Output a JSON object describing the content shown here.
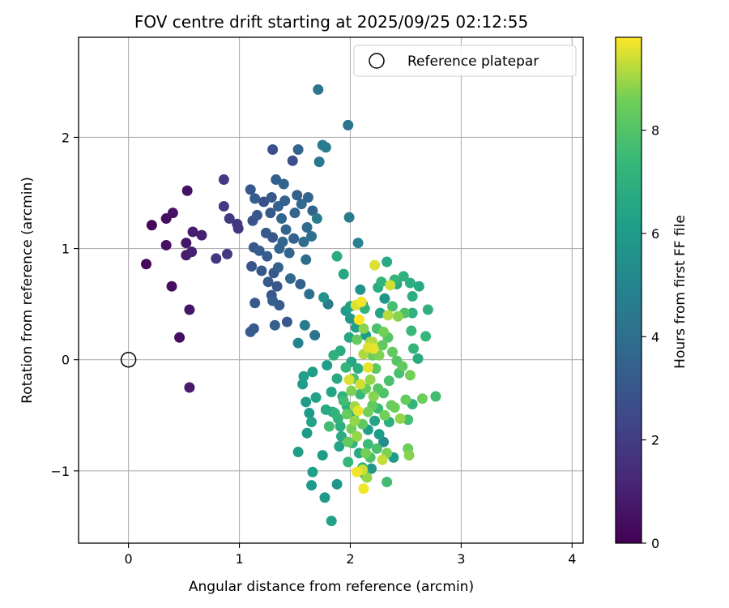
{
  "chart_data": {
    "type": "scatter",
    "title": "FOV centre drift starting at 2025/09/25 02:12:55",
    "xlabel": "Angular distance from reference (arcmin)",
    "ylabel": "Rotation from reference (arcmin)",
    "xlim": [
      -0.45,
      4.1
    ],
    "ylim": [
      -1.65,
      2.9
    ],
    "xticks": [
      0,
      1,
      2,
      3,
      4
    ],
    "xtick_labels": [
      "0",
      "1",
      "2",
      "3",
      "4"
    ],
    "yticks": [
      -1,
      0,
      1,
      2
    ],
    "ytick_labels": [
      "−1",
      "0",
      "1",
      "2"
    ],
    "grid": true,
    "legend": {
      "placement": "top-right",
      "label": "Reference platepar"
    },
    "reference_point": {
      "x": 0,
      "y": 0
    },
    "colorbar": {
      "label": "Hours from first FF file",
      "colormap": "viridis",
      "range": [
        0,
        9.8
      ],
      "ticks": [
        0,
        2,
        4,
        6,
        8
      ],
      "tick_labels": [
        "0",
        "2",
        "4",
        "6",
        "8"
      ]
    },
    "points": [
      {
        "x": 0.16,
        "y": 0.86,
        "c": 0.2
      },
      {
        "x": 0.21,
        "y": 1.21,
        "c": 0.2
      },
      {
        "x": 0.34,
        "y": 1.27,
        "c": 0.4
      },
      {
        "x": 0.34,
        "y": 1.03,
        "c": 0.5
      },
      {
        "x": 0.4,
        "y": 1.32,
        "c": 0.5
      },
      {
        "x": 0.39,
        "y": 0.66,
        "c": 0.4
      },
      {
        "x": 0.46,
        "y": 0.2,
        "c": 0.4
      },
      {
        "x": 0.52,
        "y": 1.05,
        "c": 0.7
      },
      {
        "x": 0.53,
        "y": 1.52,
        "c": 0.5
      },
      {
        "x": 0.52,
        "y": 0.94,
        "c": 0.8
      },
      {
        "x": 0.55,
        "y": 0.45,
        "c": 0.7
      },
      {
        "x": 0.55,
        "y": -0.25,
        "c": 0.8
      },
      {
        "x": 0.58,
        "y": 1.15,
        "c": 0.9
      },
      {
        "x": 0.57,
        "y": 0.97,
        "c": 1.0
      },
      {
        "x": 0.66,
        "y": 1.12,
        "c": 1.0
      },
      {
        "x": 0.79,
        "y": 0.91,
        "c": 1.7
      },
      {
        "x": 0.86,
        "y": 1.62,
        "c": 1.9
      },
      {
        "x": 0.86,
        "y": 1.38,
        "c": 1.9
      },
      {
        "x": 0.89,
        "y": 0.95,
        "c": 1.9
      },
      {
        "x": 0.91,
        "y": 1.27,
        "c": 1.9
      },
      {
        "x": 0.98,
        "y": 1.22,
        "c": 1.8
      },
      {
        "x": 0.99,
        "y": 1.18,
        "c": 1.8
      },
      {
        "x": 1.1,
        "y": 1.53,
        "c": 3.0
      },
      {
        "x": 1.12,
        "y": 1.25,
        "c": 2.8
      },
      {
        "x": 1.14,
        "y": 1.45,
        "c": 3.2
      },
      {
        "x": 1.16,
        "y": 1.3,
        "c": 3.0
      },
      {
        "x": 1.13,
        "y": 1.01,
        "c": 3.0
      },
      {
        "x": 1.11,
        "y": 0.84,
        "c": 2.9
      },
      {
        "x": 1.14,
        "y": 0.51,
        "c": 3.1
      },
      {
        "x": 1.13,
        "y": 0.28,
        "c": 3.0
      },
      {
        "x": 1.1,
        "y": 0.25,
        "c": 3.2
      },
      {
        "x": 1.18,
        "y": 0.98,
        "c": 3.2
      },
      {
        "x": 1.2,
        "y": 0.8,
        "c": 3.0
      },
      {
        "x": 1.22,
        "y": 1.42,
        "c": 2.7
      },
      {
        "x": 1.24,
        "y": 1.14,
        "c": 3.1
      },
      {
        "x": 1.25,
        "y": 0.93,
        "c": 3.2
      },
      {
        "x": 1.26,
        "y": 0.7,
        "c": 3.1
      },
      {
        "x": 1.28,
        "y": 1.32,
        "c": 3.0
      },
      {
        "x": 1.29,
        "y": 1.46,
        "c": 3.1
      },
      {
        "x": 1.3,
        "y": 1.89,
        "c": 2.7
      },
      {
        "x": 1.3,
        "y": 1.1,
        "c": 3.0
      },
      {
        "x": 1.31,
        "y": 0.78,
        "c": 3.1
      },
      {
        "x": 1.29,
        "y": 0.58,
        "c": 3.0
      },
      {
        "x": 1.3,
        "y": 0.53,
        "c": 3.3
      },
      {
        "x": 1.32,
        "y": 0.31,
        "c": 3.3
      },
      {
        "x": 1.33,
        "y": 1.62,
        "c": 3.3
      },
      {
        "x": 1.35,
        "y": 1.38,
        "c": 3.4
      },
      {
        "x": 1.36,
        "y": 1.0,
        "c": 3.5
      },
      {
        "x": 1.35,
        "y": 0.83,
        "c": 3.4
      },
      {
        "x": 1.34,
        "y": 0.66,
        "c": 3.0
      },
      {
        "x": 1.36,
        "y": 0.49,
        "c": 3.2
      },
      {
        "x": 1.38,
        "y": 1.27,
        "c": 3.6
      },
      {
        "x": 1.39,
        "y": 1.06,
        "c": 3.6
      },
      {
        "x": 1.4,
        "y": 1.58,
        "c": 3.5
      },
      {
        "x": 1.41,
        "y": 1.43,
        "c": 3.4
      },
      {
        "x": 1.42,
        "y": 1.17,
        "c": 3.5
      },
      {
        "x": 1.43,
        "y": 0.34,
        "c": 3.1
      },
      {
        "x": 1.45,
        "y": 0.96,
        "c": 3.6
      },
      {
        "x": 1.46,
        "y": 0.73,
        "c": 3.7
      },
      {
        "x": 1.48,
        "y": 1.79,
        "c": 2.7
      },
      {
        "x": 1.49,
        "y": 1.09,
        "c": 3.4
      },
      {
        "x": 1.5,
        "y": 1.32,
        "c": 3.5
      },
      {
        "x": 1.52,
        "y": 1.48,
        "c": 3.4
      },
      {
        "x": 1.53,
        "y": 1.89,
        "c": 3.5
      },
      {
        "x": 1.53,
        "y": 0.15,
        "c": 4.9
      },
      {
        "x": 1.55,
        "y": 0.68,
        "c": 3.3
      },
      {
        "x": 1.56,
        "y": 1.4,
        "c": 3.7
      },
      {
        "x": 1.58,
        "y": 1.06,
        "c": 3.9
      },
      {
        "x": 1.59,
        "y": 0.31,
        "c": 4.5
      },
      {
        "x": 1.6,
        "y": 0.9,
        "c": 3.9
      },
      {
        "x": 1.61,
        "y": 1.19,
        "c": 3.8
      },
      {
        "x": 1.62,
        "y": 1.46,
        "c": 3.5
      },
      {
        "x": 1.63,
        "y": 0.59,
        "c": 4.0
      },
      {
        "x": 1.65,
        "y": 1.11,
        "c": 4.0
      },
      {
        "x": 1.66,
        "y": 1.34,
        "c": 3.5
      },
      {
        "x": 1.68,
        "y": 0.22,
        "c": 4.2
      },
      {
        "x": 1.7,
        "y": 1.27,
        "c": 4.6
      },
      {
        "x": 1.71,
        "y": 2.43,
        "c": 4.3
      },
      {
        "x": 1.72,
        "y": 1.78,
        "c": 4.4
      },
      {
        "x": 1.75,
        "y": 1.93,
        "c": 4.6
      },
      {
        "x": 1.76,
        "y": 0.56,
        "c": 5.6
      },
      {
        "x": 1.78,
        "y": 1.91,
        "c": 4.5
      },
      {
        "x": 1.8,
        "y": 0.5,
        "c": 4.6
      },
      {
        "x": 1.98,
        "y": 2.11,
        "c": 4.2
      },
      {
        "x": 1.99,
        "y": 1.28,
        "c": 4.6
      },
      {
        "x": 2.07,
        "y": 1.05,
        "c": 4.9
      },
      {
        "x": 1.88,
        "y": 0.93,
        "c": 6.8
      },
      {
        "x": 1.94,
        "y": 0.77,
        "c": 6.5
      },
      {
        "x": 2.09,
        "y": 0.63,
        "c": 5.6
      },
      {
        "x": 2.11,
        "y": 0.5,
        "c": 4.8
      },
      {
        "x": 1.96,
        "y": 0.44,
        "c": 6.0
      },
      {
        "x": 2.0,
        "y": 0.37,
        "c": 5.9
      },
      {
        "x": 2.05,
        "y": 0.29,
        "c": 6.2
      },
      {
        "x": 1.99,
        "y": 0.2,
        "c": 6.5
      },
      {
        "x": 2.14,
        "y": 0.22,
        "c": 6.0
      },
      {
        "x": 1.91,
        "y": 0.08,
        "c": 6.8
      },
      {
        "x": 2.01,
        "y": -0.02,
        "c": 6.5
      },
      {
        "x": 2.07,
        "y": -0.08,
        "c": 6.9
      },
      {
        "x": 1.85,
        "y": 0.04,
        "c": 7.0
      },
      {
        "x": 1.88,
        "y": -0.17,
        "c": 6.6
      },
      {
        "x": 1.93,
        "y": -0.33,
        "c": 7.1
      },
      {
        "x": 1.97,
        "y": -0.42,
        "c": 6.9
      },
      {
        "x": 1.89,
        "y": -0.53,
        "c": 7.2
      },
      {
        "x": 2.04,
        "y": -0.48,
        "c": 7.0
      },
      {
        "x": 1.92,
        "y": -0.69,
        "c": 6.8
      },
      {
        "x": 2.02,
        "y": -0.75,
        "c": 7.1
      },
      {
        "x": 2.08,
        "y": -0.84,
        "c": 6.7
      },
      {
        "x": 1.98,
        "y": -0.92,
        "c": 7.3
      },
      {
        "x": 2.11,
        "y": -0.97,
        "c": 7.2
      },
      {
        "x": 1.84,
        "y": -0.47,
        "c": 6.8
      },
      {
        "x": 1.78,
        "y": -0.45,
        "c": 6.6
      },
      {
        "x": 1.75,
        "y": -0.86,
        "c": 6.1
      },
      {
        "x": 1.69,
        "y": -0.34,
        "c": 6.3
      },
      {
        "x": 1.66,
        "y": -0.11,
        "c": 6.1
      },
      {
        "x": 1.63,
        "y": -0.48,
        "c": 6.0
      },
      {
        "x": 1.65,
        "y": -0.56,
        "c": 6.3
      },
      {
        "x": 1.6,
        "y": -0.38,
        "c": 6.0
      },
      {
        "x": 1.61,
        "y": -0.66,
        "c": 6.0
      },
      {
        "x": 1.57,
        "y": -0.22,
        "c": 6.0
      },
      {
        "x": 1.58,
        "y": -0.15,
        "c": 6.2
      },
      {
        "x": 1.53,
        "y": -0.83,
        "c": 6.1
      },
      {
        "x": 1.66,
        "y": -1.01,
        "c": 6.2
      },
      {
        "x": 1.65,
        "y": -1.13,
        "c": 6.0
      },
      {
        "x": 1.77,
        "y": -1.24,
        "c": 5.9
      },
      {
        "x": 1.83,
        "y": -1.45,
        "c": 6.3
      },
      {
        "x": 1.88,
        "y": -1.12,
        "c": 5.8
      },
      {
        "x": 1.9,
        "y": -0.78,
        "c": 6.4
      },
      {
        "x": 2.13,
        "y": -1.03,
        "c": 7.0
      },
      {
        "x": 2.16,
        "y": -0.63,
        "c": 6.2
      },
      {
        "x": 2.19,
        "y": -0.98,
        "c": 5.8
      },
      {
        "x": 2.22,
        "y": -0.55,
        "c": 6.4
      },
      {
        "x": 2.26,
        "y": -0.67,
        "c": 6.1
      },
      {
        "x": 2.3,
        "y": -0.74,
        "c": 5.4
      },
      {
        "x": 2.35,
        "y": -0.56,
        "c": 6.9
      },
      {
        "x": 2.39,
        "y": -0.88,
        "c": 6.1
      },
      {
        "x": 2.33,
        "y": -1.1,
        "c": 7.6
      },
      {
        "x": 2.25,
        "y": -0.44,
        "c": 7.5
      },
      {
        "x": 2.18,
        "y": -0.18,
        "c": 8.9
      },
      {
        "x": 2.21,
        "y": -0.33,
        "c": 8.8
      },
      {
        "x": 2.16,
        "y": -0.07,
        "c": 9.6
      },
      {
        "x": 2.12,
        "y": 0.05,
        "c": 9.1
      },
      {
        "x": 2.09,
        "y": -0.22,
        "c": 9.4
      },
      {
        "x": 2.04,
        "y": -0.42,
        "c": 9.0
      },
      {
        "x": 2.01,
        "y": -0.28,
        "c": 8.7
      },
      {
        "x": 1.99,
        "y": -0.18,
        "c": 9.5
      },
      {
        "x": 1.97,
        "y": -0.49,
        "c": 8.4
      },
      {
        "x": 2.06,
        "y": -0.69,
        "c": 8.9
      },
      {
        "x": 2.14,
        "y": -0.84,
        "c": 8.6
      },
      {
        "x": 2.12,
        "y": -1.16,
        "c": 9.7
      },
      {
        "x": 2.11,
        "y": -0.99,
        "c": 9.4
      },
      {
        "x": 2.29,
        "y": -0.9,
        "c": 9.3
      },
      {
        "x": 2.33,
        "y": -0.84,
        "c": 8.7
      },
      {
        "x": 2.31,
        "y": -0.5,
        "c": 8.6
      },
      {
        "x": 2.37,
        "y": -0.41,
        "c": 8.4
      },
      {
        "x": 2.4,
        "y": -0.43,
        "c": 8.5
      },
      {
        "x": 2.45,
        "y": -0.53,
        "c": 8.9
      },
      {
        "x": 2.5,
        "y": -0.36,
        "c": 8.4
      },
      {
        "x": 2.52,
        "y": -0.54,
        "c": 7.7
      },
      {
        "x": 2.52,
        "y": -0.8,
        "c": 8.5
      },
      {
        "x": 2.53,
        "y": -0.86,
        "c": 8.8
      },
      {
        "x": 2.56,
        "y": -0.4,
        "c": 7.2
      },
      {
        "x": 2.65,
        "y": -0.35,
        "c": 8.5
      },
      {
        "x": 2.77,
        "y": -0.33,
        "c": 7.6
      },
      {
        "x": 2.47,
        "y": -0.06,
        "c": 8.3
      },
      {
        "x": 2.54,
        "y": -0.14,
        "c": 8.6
      },
      {
        "x": 2.57,
        "y": 0.1,
        "c": 7.2
      },
      {
        "x": 2.61,
        "y": 0.01,
        "c": 6.7
      },
      {
        "x": 2.55,
        "y": 0.26,
        "c": 7.4
      },
      {
        "x": 2.49,
        "y": 0.42,
        "c": 7.9
      },
      {
        "x": 2.56,
        "y": 0.42,
        "c": 7.0
      },
      {
        "x": 2.68,
        "y": 0.21,
        "c": 7.3
      },
      {
        "x": 2.7,
        "y": 0.45,
        "c": 7.0
      },
      {
        "x": 2.56,
        "y": 0.57,
        "c": 6.9
      },
      {
        "x": 2.54,
        "y": 0.69,
        "c": 6.9
      },
      {
        "x": 2.62,
        "y": 0.66,
        "c": 6.6
      },
      {
        "x": 2.42,
        "y": 0.68,
        "c": 6.6
      },
      {
        "x": 2.4,
        "y": 0.72,
        "c": 7.2
      },
      {
        "x": 2.38,
        "y": 0.48,
        "c": 7.7
      },
      {
        "x": 2.36,
        "y": 0.67,
        "c": 9.4
      },
      {
        "x": 2.34,
        "y": 0.4,
        "c": 9.2
      },
      {
        "x": 2.43,
        "y": 0.39,
        "c": 8.8
      },
      {
        "x": 2.48,
        "y": 0.75,
        "c": 7.0
      },
      {
        "x": 2.33,
        "y": 0.88,
        "c": 6.6
      },
      {
        "x": 2.22,
        "y": 0.85,
        "c": 9.5
      },
      {
        "x": 2.28,
        "y": 0.7,
        "c": 7.2
      },
      {
        "x": 2.25,
        "y": 0.65,
        "c": 6.8
      },
      {
        "x": 2.31,
        "y": 0.55,
        "c": 5.8
      },
      {
        "x": 2.27,
        "y": 0.42,
        "c": 6.4
      },
      {
        "x": 2.24,
        "y": 0.28,
        "c": 7.8
      },
      {
        "x": 2.2,
        "y": 0.16,
        "c": 9.2
      },
      {
        "x": 2.16,
        "y": 0.11,
        "c": 9.5
      },
      {
        "x": 2.21,
        "y": 0.1,
        "c": 9.6
      },
      {
        "x": 2.26,
        "y": 0.04,
        "c": 8.7
      },
      {
        "x": 2.29,
        "y": 0.13,
        "c": 8.3
      },
      {
        "x": 2.3,
        "y": 0.25,
        "c": 8.6
      },
      {
        "x": 2.34,
        "y": 0.2,
        "c": 8.0
      },
      {
        "x": 2.38,
        "y": 0.07,
        "c": 8.3
      },
      {
        "x": 2.42,
        "y": -0.01,
        "c": 8.1
      },
      {
        "x": 2.44,
        "y": -0.12,
        "c": 7.7
      },
      {
        "x": 2.35,
        "y": -0.19,
        "c": 7.8
      },
      {
        "x": 2.3,
        "y": -0.3,
        "c": 7.9
      },
      {
        "x": 2.25,
        "y": -0.26,
        "c": 8.1
      },
      {
        "x": 2.2,
        "y": -0.41,
        "c": 8.3
      },
      {
        "x": 2.16,
        "y": -0.47,
        "c": 8.6
      },
      {
        "x": 2.11,
        "y": -0.58,
        "c": 8.2
      },
      {
        "x": 2.07,
        "y": -0.46,
        "c": 9.6
      },
      {
        "x": 2.04,
        "y": -0.55,
        "c": 8.9
      },
      {
        "x": 2.01,
        "y": -0.62,
        "c": 8.6
      },
      {
        "x": 1.98,
        "y": -0.74,
        "c": 8.4
      },
      {
        "x": 2.16,
        "y": -0.76,
        "c": 7.5
      },
      {
        "x": 2.24,
        "y": -0.8,
        "c": 7.8
      },
      {
        "x": 2.18,
        "y": -0.88,
        "c": 7.9
      },
      {
        "x": 2.15,
        "y": -1.06,
        "c": 8.9
      },
      {
        "x": 2.06,
        "y": -1.01,
        "c": 9.7
      },
      {
        "x": 2.0,
        "y": 0.48,
        "c": 6.2
      },
      {
        "x": 2.05,
        "y": 0.49,
        "c": 9.5
      },
      {
        "x": 2.1,
        "y": 0.52,
        "c": 9.7
      },
      {
        "x": 2.13,
        "y": 0.46,
        "c": 7.2
      },
      {
        "x": 2.08,
        "y": 0.36,
        "c": 9.8
      },
      {
        "x": 2.12,
        "y": 0.28,
        "c": 8.8
      },
      {
        "x": 2.06,
        "y": 0.18,
        "c": 8.4
      },
      {
        "x": 2.18,
        "y": 0.16,
        "c": 9.0
      },
      {
        "x": 2.2,
        "y": 0.04,
        "c": 8.5
      },
      {
        "x": 2.23,
        "y": -0.08,
        "c": 8.2
      },
      {
        "x": 2.14,
        "y": -0.26,
        "c": 8.4
      },
      {
        "x": 2.09,
        "y": -0.31,
        "c": 7.4
      },
      {
        "x": 2.03,
        "y": -0.17,
        "c": 7.8
      },
      {
        "x": 1.96,
        "y": -0.07,
        "c": 7.2
      },
      {
        "x": 1.94,
        "y": -0.37,
        "c": 7.6
      },
      {
        "x": 1.91,
        "y": -0.6,
        "c": 6.9
      },
      {
        "x": 1.86,
        "y": -0.48,
        "c": 7.1
      },
      {
        "x": 1.81,
        "y": -0.6,
        "c": 7.6
      },
      {
        "x": 1.83,
        "y": -0.29,
        "c": 6.4
      },
      {
        "x": 1.79,
        "y": -0.05,
        "c": 6.1
      }
    ]
  }
}
